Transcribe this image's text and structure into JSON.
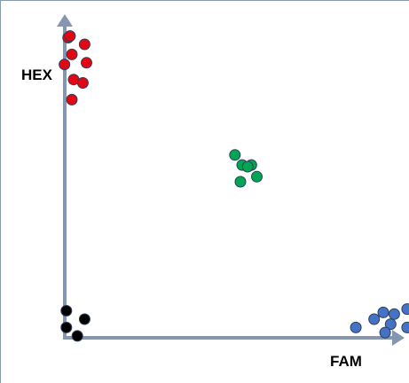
{
  "chart_data": {
    "type": "scatter",
    "xlabel": "FAM",
    "ylabel": "HEX",
    "grid": false,
    "xlim": [
      0,
      10
    ],
    "ylim": [
      0,
      10
    ],
    "series": [
      {
        "color": "#e30613",
        "points": [
          [
            0.65,
            9.3
          ],
          [
            0.7,
            9.35
          ],
          [
            1.1,
            9.1
          ],
          [
            0.75,
            8.8
          ],
          [
            1.15,
            8.55
          ],
          [
            0.55,
            8.5
          ],
          [
            0.8,
            8.05
          ],
          [
            1.05,
            7.95
          ],
          [
            0.75,
            7.45
          ]
        ]
      },
      {
        "color": "#00a651",
        "points": [
          [
            5.2,
            5.8
          ],
          [
            5.4,
            5.5
          ],
          [
            5.65,
            5.5
          ],
          [
            5.55,
            5.45
          ],
          [
            5.8,
            5.15
          ],
          [
            5.35,
            5.0
          ]
        ]
      },
      {
        "color": "#000000",
        "points": [
          [
            0.6,
            1.15
          ],
          [
            1.1,
            0.9
          ],
          [
            0.6,
            0.65
          ],
          [
            0.9,
            0.4
          ]
        ]
      },
      {
        "color": "#4472c4",
        "points": [
          [
            8.5,
            0.65
          ],
          [
            9.0,
            0.9
          ],
          [
            9.25,
            1.1
          ],
          [
            9.55,
            1.05
          ],
          [
            9.9,
            1.2
          ],
          [
            9.45,
            0.75
          ],
          [
            9.9,
            0.65
          ],
          [
            9.3,
            0.5
          ]
        ]
      }
    ]
  }
}
